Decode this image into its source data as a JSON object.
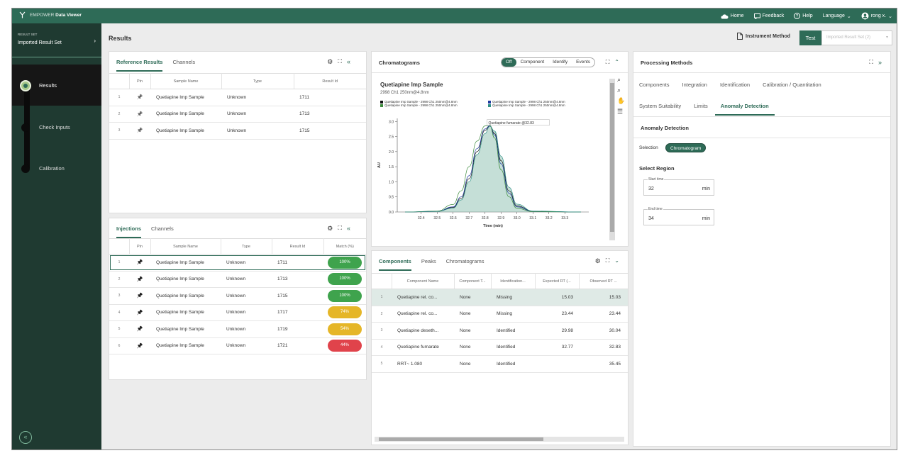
{
  "topbar": {
    "brand_light": "EMPOWER",
    "brand_bold": "Data Viewer",
    "home": "Home",
    "feedback": "Feedback",
    "help": "Help",
    "language": "Language",
    "user": "rong x."
  },
  "sidebar": {
    "result_set_label": "RESULT SET",
    "result_set_value": "Imported Result Set",
    "steps": [
      "Results",
      "Check Inputs",
      "Calibration"
    ]
  },
  "header": {
    "title": "Results",
    "instrument_method": "Instrument Method",
    "test": "Test",
    "imported_result_set": "Imported Result Set (2)"
  },
  "reference": {
    "tabs": [
      "Reference Results",
      "Channels"
    ],
    "columns": [
      "Pin",
      "Sample Name",
      "Type",
      "Result Id"
    ],
    "rows": [
      {
        "n": "1",
        "name": "Quetiapine Imp Sample",
        "type": "Unknown",
        "id": "1711"
      },
      {
        "n": "2",
        "name": "Quetiapine Imp Sample",
        "type": "Unknown",
        "id": "1713"
      },
      {
        "n": "3",
        "name": "Quetiapine Imp Sample",
        "type": "Unknown",
        "id": "1715"
      }
    ]
  },
  "injections": {
    "tabs": [
      "Injections",
      "Channels"
    ],
    "columns": [
      "Pin",
      "Sample Name",
      "Type",
      "Result Id",
      "Match (%)"
    ],
    "rows": [
      {
        "n": "1",
        "name": "Quetiapine Imp Sample",
        "type": "Unknown",
        "id": "1711",
        "match": "100%",
        "color": "#3fa34d"
      },
      {
        "n": "2",
        "name": "Quetiapine Imp Sample",
        "type": "Unknown",
        "id": "1713",
        "match": "100%",
        "color": "#3fa34d"
      },
      {
        "n": "3",
        "name": "Quetiapine Imp Sample",
        "type": "Unknown",
        "id": "1715",
        "match": "100%",
        "color": "#3fa34d"
      },
      {
        "n": "4",
        "name": "Quetiapine Imp Sample",
        "type": "Unknown",
        "id": "1717",
        "match": "74%",
        "color": "#e5b628"
      },
      {
        "n": "5",
        "name": "Quetiapine Imp Sample",
        "type": "Unknown",
        "id": "1719",
        "match": "54%",
        "color": "#e5b628"
      },
      {
        "n": "6",
        "name": "Quetiapine Imp Sample",
        "type": "Unknown",
        "id": "1721",
        "match": "44%",
        "color": "#e0434b"
      }
    ]
  },
  "chromatograms": {
    "title": "Chromatograms",
    "modes": [
      "Off",
      "Component",
      "Identify",
      "Events"
    ],
    "sample_title": "Quetiapine Imp Sample",
    "subtitle": "2998 Ch1 250nm@4.8nm",
    "legend": [
      {
        "label": "Quetiapine Imp Sample - 2998 Ch1 250nm@4.8nm",
        "color": "#111111"
      },
      {
        "label": "Quetiapine Imp Sample - 2998 Ch1 250nm@4.8nm",
        "color": "#1f3aa0"
      },
      {
        "label": "Quetiapine Imp Sample - 2998 Ch1 250nm@4.8nm",
        "color": "#3a8a3a"
      },
      {
        "label": "Quetiapine Imp Sample - 2998 Ch1 250nm@4.8nm",
        "color": "#2f8f86"
      }
    ],
    "annotation": "Quetiapine fumarate @32.83"
  },
  "chart_data": {
    "type": "line",
    "title": "Quetiapine Imp Sample",
    "subtitle": "2998 Ch1 250nm@4.8nm",
    "xlabel": "Time (min)",
    "ylabel": "AU",
    "xlim": [
      32.25,
      33.45
    ],
    "ylim": [
      0,
      3.1
    ],
    "xticks": [
      "32.4",
      "32.5",
      "32.6",
      "32.7",
      "32.8",
      "32.9",
      "33.0",
      "33.1",
      "33.2",
      "33.3"
    ],
    "yticks": [
      "0.0",
      "0.5",
      "1.0",
      "1.5",
      "2.0",
      "2.5",
      "3.0"
    ],
    "peak_apex": 32.83,
    "series": [
      {
        "color": "#111111",
        "x": [
          32.3,
          32.5,
          32.6,
          32.65,
          32.7,
          32.75,
          32.8,
          32.83,
          32.86,
          32.9,
          32.95,
          33.0,
          33.1,
          33.4
        ],
        "y": [
          0,
          0.02,
          0.15,
          0.45,
          1.1,
          2.0,
          2.7,
          2.85,
          2.6,
          1.7,
          0.7,
          0.2,
          0.02,
          0
        ]
      },
      {
        "color": "#1f3aa0",
        "x": [
          32.3,
          32.5,
          32.6,
          32.65,
          32.7,
          32.75,
          32.8,
          32.83,
          32.86,
          32.9,
          32.95,
          33.0,
          33.1,
          33.4
        ],
        "y": [
          0,
          0.02,
          0.17,
          0.5,
          1.2,
          2.1,
          2.75,
          2.86,
          2.55,
          1.6,
          0.62,
          0.17,
          0.02,
          0
        ]
      },
      {
        "color": "#3a8a3a",
        "x": [
          32.3,
          32.5,
          32.6,
          32.65,
          32.7,
          32.75,
          32.8,
          32.83,
          32.86,
          32.9,
          32.95,
          33.0,
          33.1,
          33.4
        ],
        "y": [
          0,
          0.03,
          0.25,
          0.7,
          1.5,
          2.35,
          2.85,
          2.87,
          2.45,
          1.4,
          0.5,
          0.12,
          0.01,
          0
        ]
      },
      {
        "color": "#2f8f86",
        "x": [
          32.3,
          32.5,
          32.6,
          32.65,
          32.7,
          32.75,
          32.8,
          32.83,
          32.86,
          32.9,
          32.95,
          33.0,
          33.1,
          33.4
        ],
        "y": [
          0,
          0.02,
          0.13,
          0.4,
          1.0,
          1.9,
          2.6,
          2.84,
          2.68,
          1.85,
          0.82,
          0.26,
          0.03,
          0
        ]
      }
    ]
  },
  "components": {
    "tabs": [
      "Components",
      "Peaks",
      "Chromatograms"
    ],
    "columns": [
      "Component Name",
      "Component T...",
      "Identification...",
      "Expected RT (...",
      "Observed RT ..."
    ],
    "rows": [
      {
        "n": "1",
        "name": "Quetiapine rel. co...",
        "type": "None",
        "ident": "Missing",
        "exp": "15.03",
        "obs": "15.03"
      },
      {
        "n": "2",
        "name": "Quetiapine rel. co...",
        "type": "None",
        "ident": "Missing",
        "exp": "23.44",
        "obs": "23.44"
      },
      {
        "n": "3",
        "name": "Quetiapine deseth...",
        "type": "None",
        "ident": "Identified",
        "exp": "29.98",
        "obs": "30.04"
      },
      {
        "n": "4",
        "name": "Quetiapine fumarate",
        "type": "None",
        "ident": "Identified",
        "exp": "32.77",
        "obs": "32.83"
      },
      {
        "n": "5",
        "name": "RRT~ 1.080",
        "type": "None",
        "ident": "Identified",
        "exp": "",
        "obs": "35.45"
      }
    ]
  },
  "processing": {
    "title": "Processing Methods",
    "tabs_row1": [
      "Components",
      "Integration",
      "Identification",
      "Calibration / Quantitation"
    ],
    "tabs_row2": [
      "System Suitability",
      "Limits",
      "Anomaly Detection"
    ],
    "section": "Anomaly Detection",
    "selection_label": "Selection",
    "selection_chip": "Chromatogram",
    "select_region": "Select Region",
    "start": {
      "label": "Start time",
      "value": "32",
      "unit": "min"
    },
    "end": {
      "label": "End time",
      "value": "34",
      "unit": "min"
    }
  }
}
